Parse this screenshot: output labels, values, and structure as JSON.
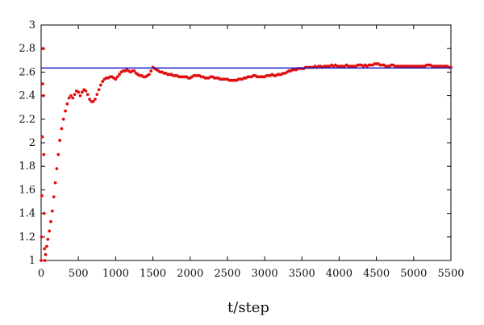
{
  "chart_data": {
    "type": "scatter",
    "title": "",
    "xlabel": "t/step",
    "ylabel": "",
    "xlim": [
      0,
      5500
    ],
    "ylim": [
      1,
      3
    ],
    "x_ticks": [
      0,
      500,
      1000,
      1500,
      2000,
      2500,
      3000,
      3500,
      4000,
      4500,
      5000,
      5500
    ],
    "y_ticks": [
      1,
      1.2,
      1.4,
      1.6,
      1.8,
      2,
      2.2,
      2.4,
      2.6,
      2.8,
      3
    ],
    "x_tick_labels": [
      "0",
      "500",
      "1000",
      "1500",
      "2000",
      "2500",
      "3000",
      "3500",
      "4000",
      "4500",
      "5000",
      "5500"
    ],
    "y_tick_labels": [
      "1",
      "1.2",
      "1.4",
      "1.6",
      "1.8",
      "2",
      "2.2",
      "2.4",
      "2.6",
      "2.8",
      "3"
    ],
    "grid": false,
    "legend": "none",
    "series": [
      {
        "type": "scatter",
        "color": "#e01010",
        "points": [
          [
            0,
            1.0
          ],
          [
            5,
            1.2
          ],
          [
            10,
            1.55
          ],
          [
            15,
            2.05
          ],
          [
            20,
            2.5
          ],
          [
            25,
            2.8
          ],
          [
            30,
            2.4
          ],
          [
            35,
            1.9
          ],
          [
            40,
            1.4
          ],
          [
            45,
            1.1
          ],
          [
            50,
            1.0
          ],
          [
            60,
            1.05
          ],
          [
            75,
            1.12
          ],
          [
            90,
            1.18
          ],
          [
            110,
            1.25
          ],
          [
            130,
            1.33
          ],
          [
            150,
            1.42
          ],
          [
            170,
            1.54
          ],
          [
            190,
            1.66
          ],
          [
            210,
            1.78
          ],
          [
            230,
            1.9
          ],
          [
            250,
            2.02
          ],
          [
            275,
            2.12
          ],
          [
            300,
            2.2
          ],
          [
            325,
            2.27
          ],
          [
            350,
            2.33
          ],
          [
            375,
            2.38
          ],
          [
            400,
            2.4
          ],
          [
            425,
            2.38
          ],
          [
            450,
            2.41
          ],
          [
            475,
            2.44
          ],
          [
            500,
            2.43
          ],
          [
            525,
            2.4
          ],
          [
            550,
            2.43
          ],
          [
            575,
            2.45
          ],
          [
            600,
            2.44
          ],
          [
            625,
            2.41
          ],
          [
            650,
            2.37
          ],
          [
            675,
            2.35
          ],
          [
            700,
            2.35
          ],
          [
            725,
            2.37
          ],
          [
            750,
            2.41
          ],
          [
            775,
            2.45
          ],
          [
            800,
            2.49
          ],
          [
            825,
            2.52
          ],
          [
            850,
            2.54
          ],
          [
            875,
            2.55
          ],
          [
            900,
            2.55
          ],
          [
            925,
            2.56
          ],
          [
            950,
            2.56
          ],
          [
            975,
            2.55
          ],
          [
            1000,
            2.54
          ],
          [
            1025,
            2.56
          ],
          [
            1050,
            2.58
          ],
          [
            1075,
            2.6
          ],
          [
            1100,
            2.61
          ],
          [
            1125,
            2.61
          ],
          [
            1150,
            2.62
          ],
          [
            1175,
            2.61
          ],
          [
            1200,
            2.6
          ],
          [
            1225,
            2.61
          ],
          [
            1250,
            2.61
          ],
          [
            1275,
            2.59
          ],
          [
            1300,
            2.58
          ],
          [
            1325,
            2.57
          ],
          [
            1350,
            2.57
          ],
          [
            1375,
            2.56
          ],
          [
            1400,
            2.56
          ],
          [
            1425,
            2.57
          ],
          [
            1450,
            2.58
          ],
          [
            1475,
            2.61
          ],
          [
            1500,
            2.64
          ],
          [
            1525,
            2.63
          ],
          [
            1550,
            2.62
          ],
          [
            1575,
            2.61
          ],
          [
            1600,
            2.6
          ],
          [
            1625,
            2.6
          ],
          [
            1650,
            2.59
          ],
          [
            1675,
            2.59
          ],
          [
            1700,
            2.58
          ],
          [
            1725,
            2.58
          ],
          [
            1750,
            2.58
          ],
          [
            1775,
            2.57
          ],
          [
            1800,
            2.57
          ],
          [
            1825,
            2.57
          ],
          [
            1850,
            2.56
          ],
          [
            1875,
            2.56
          ],
          [
            1900,
            2.56
          ],
          [
            1925,
            2.56
          ],
          [
            1950,
            2.56
          ],
          [
            1975,
            2.55
          ],
          [
            2000,
            2.55
          ],
          [
            2025,
            2.56
          ],
          [
            2050,
            2.57
          ],
          [
            2075,
            2.57
          ],
          [
            2100,
            2.57
          ],
          [
            2125,
            2.57
          ],
          [
            2150,
            2.56
          ],
          [
            2175,
            2.56
          ],
          [
            2200,
            2.55
          ],
          [
            2225,
            2.55
          ],
          [
            2250,
            2.55
          ],
          [
            2275,
            2.56
          ],
          [
            2300,
            2.56
          ],
          [
            2325,
            2.55
          ],
          [
            2350,
            2.55
          ],
          [
            2375,
            2.55
          ],
          [
            2400,
            2.54
          ],
          [
            2425,
            2.54
          ],
          [
            2450,
            2.54
          ],
          [
            2475,
            2.54
          ],
          [
            2500,
            2.54
          ],
          [
            2525,
            2.53
          ],
          [
            2550,
            2.53
          ],
          [
            2575,
            2.53
          ],
          [
            2600,
            2.53
          ],
          [
            2625,
            2.53
          ],
          [
            2650,
            2.54
          ],
          [
            2675,
            2.54
          ],
          [
            2700,
            2.54
          ],
          [
            2725,
            2.55
          ],
          [
            2750,
            2.55
          ],
          [
            2775,
            2.56
          ],
          [
            2800,
            2.56
          ],
          [
            2825,
            2.56
          ],
          [
            2850,
            2.57
          ],
          [
            2875,
            2.57
          ],
          [
            2900,
            2.56
          ],
          [
            2925,
            2.56
          ],
          [
            2950,
            2.56
          ],
          [
            2975,
            2.56
          ],
          [
            3000,
            2.56
          ],
          [
            3025,
            2.57
          ],
          [
            3050,
            2.57
          ],
          [
            3075,
            2.57
          ],
          [
            3100,
            2.58
          ],
          [
            3125,
            2.57
          ],
          [
            3150,
            2.57
          ],
          [
            3175,
            2.58
          ],
          [
            3200,
            2.58
          ],
          [
            3225,
            2.58
          ],
          [
            3250,
            2.59
          ],
          [
            3275,
            2.59
          ],
          [
            3300,
            2.6
          ],
          [
            3325,
            2.61
          ],
          [
            3350,
            2.61
          ],
          [
            3375,
            2.62
          ],
          [
            3400,
            2.62
          ],
          [
            3425,
            2.62
          ],
          [
            3450,
            2.63
          ],
          [
            3475,
            2.63
          ],
          [
            3500,
            2.63
          ],
          [
            3525,
            2.63
          ],
          [
            3550,
            2.64
          ],
          [
            3575,
            2.64
          ],
          [
            3600,
            2.64
          ],
          [
            3625,
            2.64
          ],
          [
            3650,
            2.64
          ],
          [
            3675,
            2.65
          ],
          [
            3700,
            2.64
          ],
          [
            3725,
            2.65
          ],
          [
            3750,
            2.65
          ],
          [
            3775,
            2.64
          ],
          [
            3800,
            2.65
          ],
          [
            3825,
            2.65
          ],
          [
            3850,
            2.65
          ],
          [
            3875,
            2.65
          ],
          [
            3900,
            2.66
          ],
          [
            3925,
            2.65
          ],
          [
            3950,
            2.66
          ],
          [
            3975,
            2.65
          ],
          [
            4000,
            2.65
          ],
          [
            4025,
            2.65
          ],
          [
            4050,
            2.65
          ],
          [
            4075,
            2.65
          ],
          [
            4100,
            2.66
          ],
          [
            4125,
            2.65
          ],
          [
            4150,
            2.65
          ],
          [
            4175,
            2.65
          ],
          [
            4200,
            2.65
          ],
          [
            4225,
            2.65
          ],
          [
            4250,
            2.66
          ],
          [
            4275,
            2.66
          ],
          [
            4300,
            2.66
          ],
          [
            4325,
            2.65
          ],
          [
            4350,
            2.66
          ],
          [
            4375,
            2.65
          ],
          [
            4400,
            2.66
          ],
          [
            4425,
            2.66
          ],
          [
            4450,
            2.66
          ],
          [
            4475,
            2.67
          ],
          [
            4500,
            2.67
          ],
          [
            4525,
            2.67
          ],
          [
            4550,
            2.66
          ],
          [
            4575,
            2.66
          ],
          [
            4600,
            2.66
          ],
          [
            4625,
            2.65
          ],
          [
            4650,
            2.65
          ],
          [
            4675,
            2.65
          ],
          [
            4700,
            2.66
          ],
          [
            4725,
            2.66
          ],
          [
            4750,
            2.65
          ],
          [
            4775,
            2.65
          ],
          [
            4800,
            2.65
          ],
          [
            4825,
            2.65
          ],
          [
            4850,
            2.65
          ],
          [
            4875,
            2.65
          ],
          [
            4900,
            2.65
          ],
          [
            4925,
            2.65
          ],
          [
            4950,
            2.65
          ],
          [
            4975,
            2.65
          ],
          [
            5000,
            2.65
          ],
          [
            5025,
            2.65
          ],
          [
            5050,
            2.65
          ],
          [
            5075,
            2.65
          ],
          [
            5100,
            2.65
          ],
          [
            5125,
            2.65
          ],
          [
            5150,
            2.65
          ],
          [
            5175,
            2.66
          ],
          [
            5200,
            2.66
          ],
          [
            5225,
            2.66
          ],
          [
            5250,
            2.65
          ],
          [
            5275,
            2.65
          ],
          [
            5300,
            2.65
          ],
          [
            5325,
            2.65
          ],
          [
            5350,
            2.65
          ],
          [
            5375,
            2.65
          ],
          [
            5400,
            2.65
          ],
          [
            5425,
            2.65
          ],
          [
            5450,
            2.65
          ],
          [
            5475,
            2.64
          ],
          [
            5500,
            2.64
          ]
        ]
      },
      {
        "type": "line",
        "color": "#1010cc",
        "points": [
          [
            0,
            2.635
          ],
          [
            5500,
            2.635
          ]
        ]
      }
    ]
  }
}
